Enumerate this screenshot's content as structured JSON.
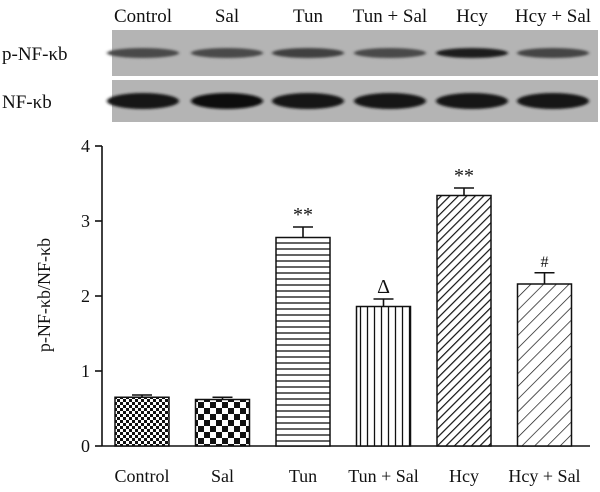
{
  "blot": {
    "lane_labels": [
      "Control",
      "Sal",
      "Tun",
      "Tun + Sal",
      "Hcy",
      "Hcy + Sal"
    ],
    "rows": [
      {
        "label": "p-NF-κb",
        "intensity": [
          0.55,
          0.55,
          0.62,
          0.55,
          0.85,
          0.58
        ]
      },
      {
        "label": "NF-κb",
        "intensity": [
          0.92,
          0.95,
          0.92,
          0.92,
          0.92,
          0.92
        ]
      }
    ]
  },
  "chart_data": {
    "type": "bar",
    "title": "",
    "xlabel": "",
    "ylabel": "p-NF-κb/NF-κb",
    "ylim": [
      0,
      4
    ],
    "yticks": [
      0,
      1,
      2,
      3,
      4
    ],
    "grid": false,
    "categories": [
      "Control",
      "Sal",
      "Tun",
      "Tun + Sal",
      "Hcy",
      "Hcy + Sal"
    ],
    "values": [
      0.65,
      0.62,
      2.78,
      1.86,
      3.34,
      2.16
    ],
    "errors": [
      0.03,
      0.03,
      0.14,
      0.1,
      0.1,
      0.15
    ],
    "patterns": [
      "checker-fine",
      "checker-coarse",
      "horizontal-lines",
      "vertical-lines",
      "diagonal-dense",
      "diagonal-sparse"
    ],
    "annotations": [
      "",
      "",
      "**",
      "Δ",
      "**",
      "#"
    ],
    "colors": {
      "ink": "#111111",
      "background": "#ffffff"
    }
  }
}
